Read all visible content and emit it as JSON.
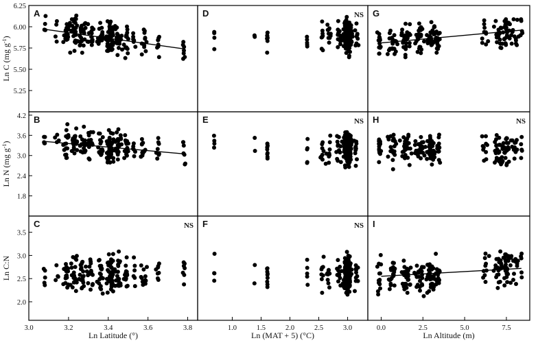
{
  "chart_data": {
    "type": "scatter",
    "grid": false,
    "row_ylabels": [
      {
        "main": "Ln C",
        "units_pre": "(mg g",
        "sup": "-1",
        "units_post": ")"
      },
      {
        "main": "Ln N",
        "units_pre": "(mg g",
        "sup": "-1",
        "units_post": ")"
      },
      {
        "main": "Ln C:N",
        "units_pre": "",
        "sup": "",
        "units_post": ""
      }
    ],
    "row_ylims": [
      [
        5.0,
        6.25
      ],
      [
        1.2,
        4.3
      ],
      [
        1.6,
        3.85
      ]
    ],
    "row_yticks": [
      {
        "values": [
          5.25,
          5.5,
          5.75,
          6.0,
          6.25
        ],
        "labels": [
          "5.25",
          "5.50",
          "5.75",
          "6.00",
          "6.25"
        ]
      },
      {
        "values": [
          1.8,
          2.4,
          3.0,
          3.6,
          4.2
        ],
        "labels": [
          "1.8",
          "2.4",
          "3.0",
          "3.6",
          "4.2"
        ]
      },
      {
        "values": [
          2.0,
          2.5,
          3.0,
          3.5
        ],
        "labels": [
          "2.0",
          "2.5",
          "3.0",
          "3.5"
        ]
      }
    ],
    "col_xlabels": [
      {
        "text": "Ln Latitude (°)"
      },
      {
        "text": "Ln (MAT + 5) (°C)"
      },
      {
        "text": "Ln Altitude (m)"
      }
    ],
    "col_xlims": [
      [
        3.0,
        3.85
      ],
      [
        0.4,
        3.35
      ],
      [
        -0.8,
        8.9
      ]
    ],
    "col_xticks": [
      {
        "values": [
          3.0,
          3.2,
          3.4,
          3.6,
          3.8
        ],
        "labels": [
          "3.0",
          "3.2",
          "3.4",
          "3.6",
          "3.8"
        ]
      },
      {
        "values": [
          1.0,
          1.5,
          2.0,
          2.5,
          3.0
        ],
        "labels": [
          "1.0",
          "1.5",
          "2.0",
          "2.5",
          "3.0"
        ]
      },
      {
        "values": [
          0.0,
          2.5,
          5.0,
          7.5
        ],
        "labels": [
          "0.0",
          "2.5",
          "5.0",
          "7.5"
        ]
      }
    ],
    "panels": [
      {
        "letter": "A",
        "row": 0,
        "col": 0,
        "ns": "",
        "fit": {
          "x": [
            3.08,
            3.78
          ],
          "y": [
            5.97,
            5.74
          ]
        }
      },
      {
        "letter": "B",
        "row": 1,
        "col": 0,
        "ns": "",
        "fit": {
          "x": [
            3.08,
            3.78
          ],
          "y": [
            3.42,
            3.05
          ]
        }
      },
      {
        "letter": "C",
        "row": 2,
        "col": 0,
        "ns": "NS",
        "fit": null
      },
      {
        "letter": "D",
        "row": 0,
        "col": 1,
        "ns": "NS",
        "fit": null
      },
      {
        "letter": "E",
        "row": 1,
        "col": 1,
        "ns": "NS",
        "fit": null
      },
      {
        "letter": "F",
        "row": 2,
        "col": 1,
        "ns": "NS",
        "fit": null
      },
      {
        "letter": "G",
        "row": 0,
        "col": 2,
        "ns": "",
        "fit": {
          "x": [
            0.0,
            8.4
          ],
          "y": [
            5.81,
            5.96
          ]
        }
      },
      {
        "letter": "H",
        "row": 1,
        "col": 2,
        "ns": "NS",
        "fit": null
      },
      {
        "letter": "I",
        "row": 2,
        "col": 2,
        "ns": "",
        "fit": {
          "x": [
            0.0,
            8.4
          ],
          "y": [
            2.55,
            2.72
          ]
        }
      }
    ],
    "point_groups": {
      "col0_x_groups": [
        {
          "x": 3.08,
          "n": 5,
          "spread": 0.005
        },
        {
          "x": 3.14,
          "n": 4,
          "spread": 0.008
        },
        {
          "x": 3.19,
          "n": 18,
          "spread": 0.012
        },
        {
          "x": 3.23,
          "n": 24,
          "spread": 0.015
        },
        {
          "x": 3.27,
          "n": 20,
          "spread": 0.015
        },
        {
          "x": 3.31,
          "n": 16,
          "spread": 0.015
        },
        {
          "x": 3.36,
          "n": 18,
          "spread": 0.012
        },
        {
          "x": 3.41,
          "n": 48,
          "spread": 0.015
        },
        {
          "x": 3.45,
          "n": 22,
          "spread": 0.015
        },
        {
          "x": 3.49,
          "n": 14,
          "spread": 0.012
        },
        {
          "x": 3.53,
          "n": 6,
          "spread": 0.008
        },
        {
          "x": 3.58,
          "n": 12,
          "spread": 0.012
        },
        {
          "x": 3.65,
          "n": 8,
          "spread": 0.01
        },
        {
          "x": 3.78,
          "n": 7,
          "spread": 0.005
        }
      ],
      "col1_x_groups": [
        {
          "x": 0.69,
          "n": 4,
          "spread": 0.005
        },
        {
          "x": 1.39,
          "n": 2,
          "spread": 0.005
        },
        {
          "x": 1.61,
          "n": 9,
          "spread": 0.006
        },
        {
          "x": 2.3,
          "n": 5,
          "spread": 0.006
        },
        {
          "x": 2.56,
          "n": 8,
          "spread": 0.02
        },
        {
          "x": 2.67,
          "n": 10,
          "spread": 0.04
        },
        {
          "x": 2.85,
          "n": 14,
          "spread": 0.05
        },
        {
          "x": 3.0,
          "n": 170,
          "spread": 0.055
        },
        {
          "x": 3.15,
          "n": 10,
          "spread": 0.03
        }
      ],
      "col2_x_groups": [
        {
          "x": -0.1,
          "n": 14,
          "spread": 0.1
        },
        {
          "x": 0.7,
          "n": 20,
          "spread": 0.2
        },
        {
          "x": 1.5,
          "n": 30,
          "spread": 0.25
        },
        {
          "x": 2.3,
          "n": 24,
          "spread": 0.25
        },
        {
          "x": 3.0,
          "n": 36,
          "spread": 0.25
        },
        {
          "x": 3.4,
          "n": 12,
          "spread": 0.1
        },
        {
          "x": 6.2,
          "n": 10,
          "spread": 0.2
        },
        {
          "x": 7.0,
          "n": 22,
          "spread": 0.25
        },
        {
          "x": 7.5,
          "n": 26,
          "spread": 0.2
        },
        {
          "x": 8.0,
          "n": 12,
          "spread": 0.2
        },
        {
          "x": 8.4,
          "n": 5,
          "spread": 0.05
        }
      ],
      "row_y_center": [
        5.88,
        3.2,
        2.6
      ],
      "row_y_spread": [
        0.15,
        0.38,
        0.32
      ]
    }
  }
}
